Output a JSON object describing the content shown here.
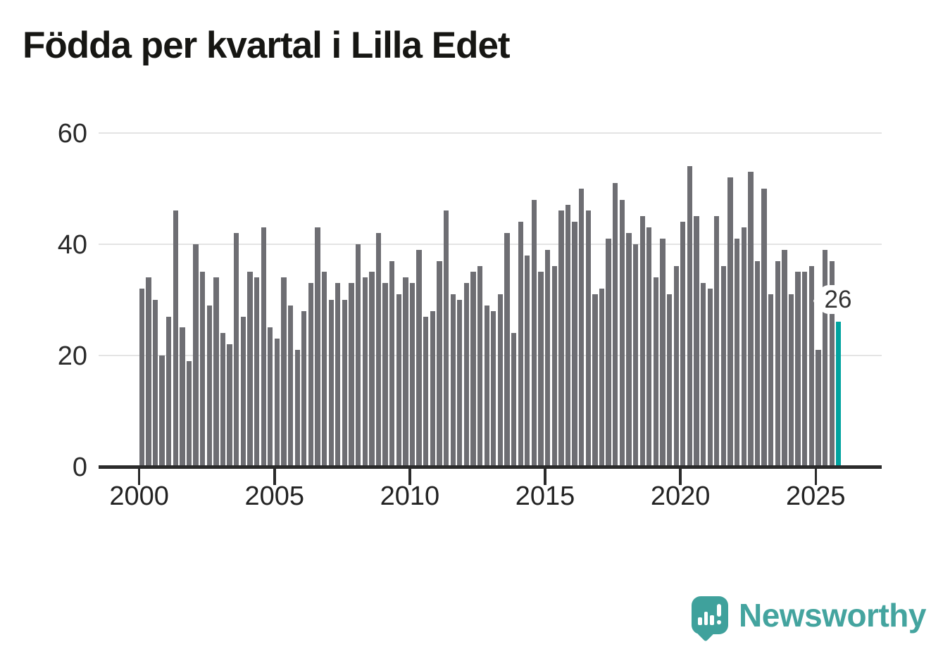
{
  "title": "Födda per kvartal i Lilla Edet",
  "chart_data": {
    "type": "bar",
    "title": "Födda per kvartal i Lilla Edet",
    "frequency": "quarterly",
    "xlabel": "",
    "ylabel": "",
    "ylim": [
      0,
      60
    ],
    "yticks": [
      0,
      20,
      40,
      60
    ],
    "xticks": [
      2000,
      2005,
      2010,
      2015,
      2020,
      2025
    ],
    "grid": "horizontal",
    "legend": "none",
    "bar_color": "#6e6e73",
    "years": [
      {
        "year": 2000,
        "values": [
          32,
          34,
          30,
          20
        ]
      },
      {
        "year": 2001,
        "values": [
          27,
          46,
          25,
          19
        ]
      },
      {
        "year": 2002,
        "values": [
          40,
          35,
          29,
          34
        ]
      },
      {
        "year": 2003,
        "values": [
          24,
          22,
          42,
          27
        ]
      },
      {
        "year": 2004,
        "values": [
          35,
          34,
          43,
          25
        ]
      },
      {
        "year": 2005,
        "values": [
          23,
          34,
          29,
          21
        ]
      },
      {
        "year": 2006,
        "values": [
          28,
          33,
          43,
          35
        ]
      },
      {
        "year": 2007,
        "values": [
          30,
          33,
          30,
          33
        ]
      },
      {
        "year": 2008,
        "values": [
          40,
          34,
          35,
          42
        ]
      },
      {
        "year": 2009,
        "values": [
          33,
          37,
          31,
          34
        ]
      },
      {
        "year": 2010,
        "values": [
          33,
          39,
          27,
          28
        ]
      },
      {
        "year": 2011,
        "values": [
          37,
          46,
          31,
          30
        ]
      },
      {
        "year": 2012,
        "values": [
          33,
          35,
          36,
          29
        ]
      },
      {
        "year": 2013,
        "values": [
          28,
          31,
          42,
          24
        ]
      },
      {
        "year": 2014,
        "values": [
          44,
          38,
          48,
          35
        ]
      },
      {
        "year": 2015,
        "values": [
          39,
          36,
          46,
          47
        ]
      },
      {
        "year": 2016,
        "values": [
          44,
          50,
          46,
          31
        ]
      },
      {
        "year": 2017,
        "values": [
          32,
          41,
          51,
          48
        ]
      },
      {
        "year": 2018,
        "values": [
          42,
          40,
          45,
          43
        ]
      },
      {
        "year": 2019,
        "values": [
          34,
          41,
          31,
          36
        ]
      },
      {
        "year": 2020,
        "values": [
          44,
          54,
          45,
          33
        ]
      },
      {
        "year": 2021,
        "values": [
          32,
          45,
          36,
          52
        ]
      },
      {
        "year": 2022,
        "values": [
          41,
          43,
          53,
          37
        ]
      },
      {
        "year": 2023,
        "values": [
          50,
          31,
          37,
          39
        ]
      },
      {
        "year": 2024,
        "values": [
          31,
          35,
          35,
          36
        ]
      },
      {
        "year": 2025,
        "values": [
          21,
          39,
          37,
          26
        ]
      }
    ],
    "highlight": {
      "year": 2025,
      "quarter": 4,
      "value": 26,
      "label": "26",
      "color": "#00a39f"
    }
  },
  "footer": {
    "brand": "Newsworthy",
    "logo_color": "#3fa19c",
    "text_color": "#44a49f"
  }
}
